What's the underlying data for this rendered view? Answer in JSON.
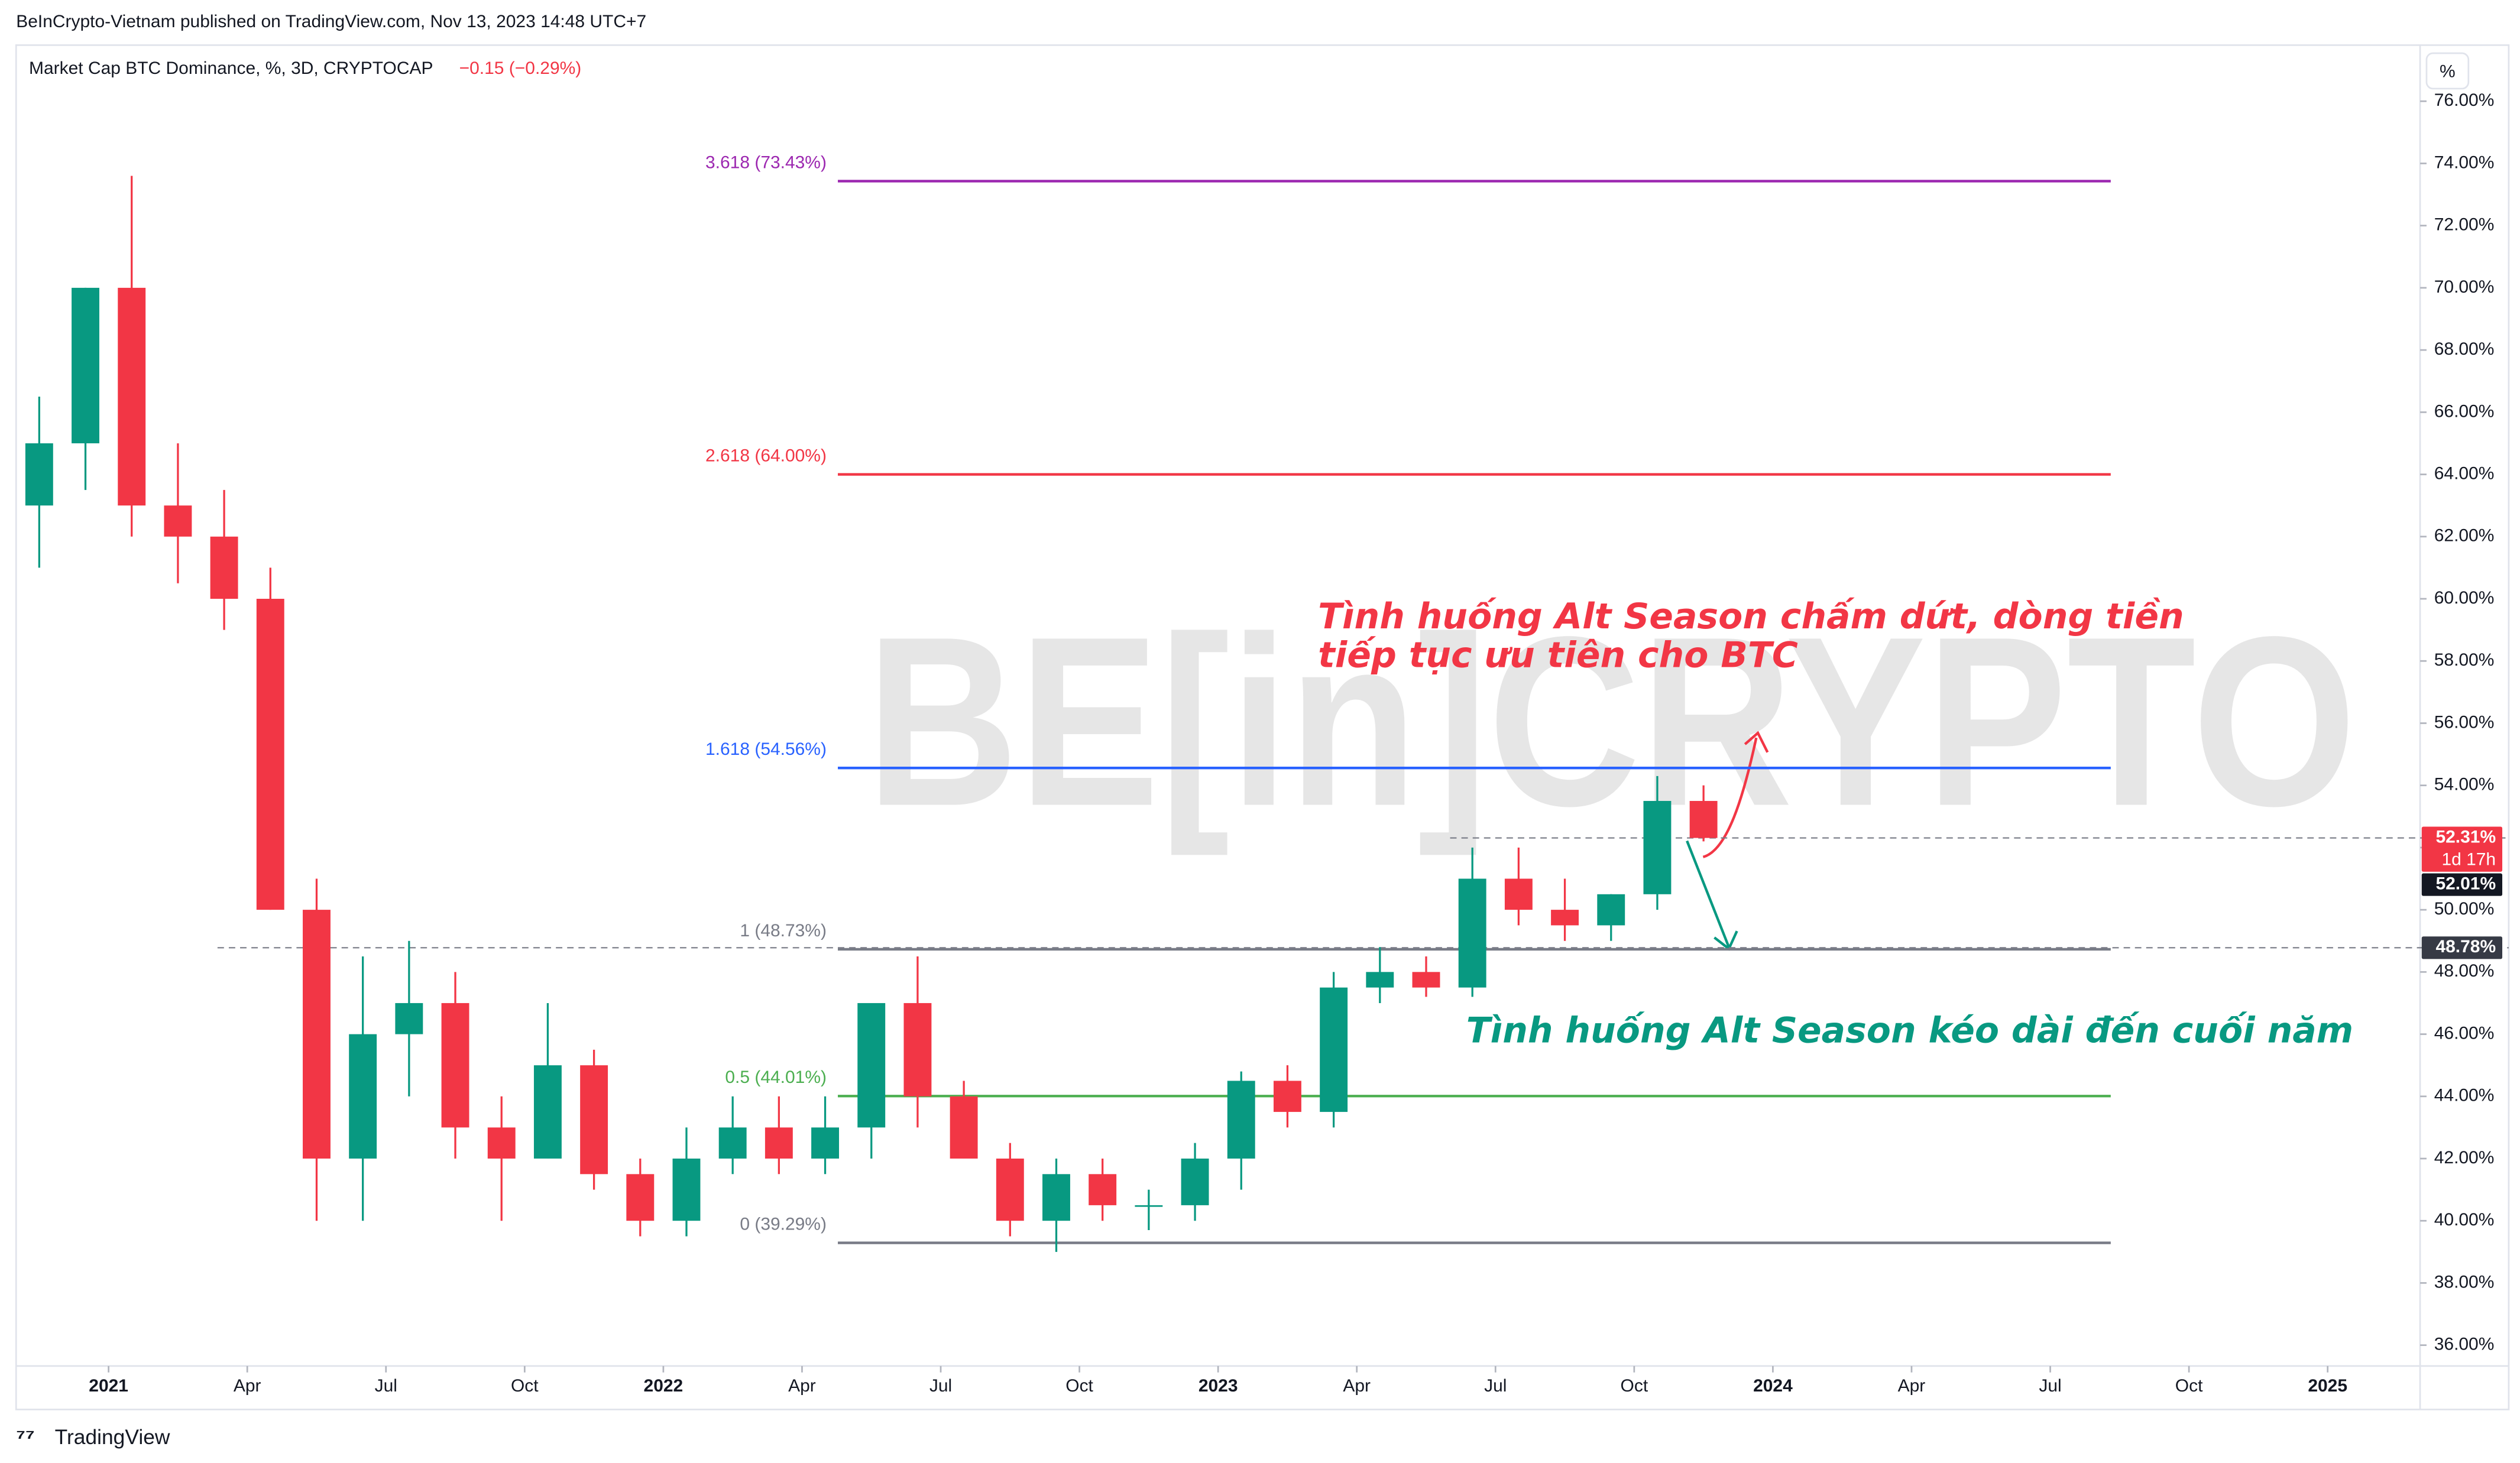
{
  "header": {
    "published": "BeInCrypto-Vietnam published on TradingView.com, Nov 13, 2023 14:48 UTC+7",
    "scale_button": "%"
  },
  "footer": {
    "brand": "TradingView"
  },
  "watermark": "BE[in]CRYPTO",
  "chart_data": {
    "type": "candlestick",
    "title": "Market Cap BTC Dominance, %, 3D, CRYPTOCAP",
    "change": "−0.15 (−0.29%)",
    "x": [
      "2020-11",
      "2020-12",
      "2021-01",
      "2021-02",
      "2021-03",
      "2021-04",
      "2021-05",
      "2021-06",
      "2021-07",
      "2021-08",
      "2021-09",
      "2021-10",
      "2021-11",
      "2021-12",
      "2022-01",
      "2022-02",
      "2022-03",
      "2022-04",
      "2022-05",
      "2022-06",
      "2022-07",
      "2022-08",
      "2022-09",
      "2022-10",
      "2022-11",
      "2022-12",
      "2023-01",
      "2023-02",
      "2023-03",
      "2023-04",
      "2023-05",
      "2023-06",
      "2023-07",
      "2023-08",
      "2023-09",
      "2023-10",
      "2023-11"
    ],
    "open": [
      63,
      65,
      70,
      63,
      62,
      60,
      50,
      42,
      46,
      47,
      43,
      42,
      45,
      41.5,
      40,
      42,
      43,
      42,
      43,
      47,
      44,
      42,
      40,
      41.5,
      40.5,
      40.5,
      42,
      44.5,
      43.5,
      47.5,
      48,
      47.5,
      51,
      50,
      49.5,
      50.5,
      53.5
    ],
    "high": [
      66.5,
      70,
      73.6,
      65,
      63.5,
      61,
      51,
      48.5,
      49,
      48,
      44,
      47,
      45.5,
      42,
      43,
      44,
      44,
      44,
      47,
      48.5,
      44.5,
      42.5,
      42,
      42,
      41,
      42.5,
      44.8,
      45,
      48,
      48.8,
      48.5,
      52,
      52,
      51,
      50.5,
      54.3,
      54
    ],
    "low": [
      61,
      63.5,
      62,
      60.5,
      59,
      50,
      40,
      40,
      44,
      42,
      40,
      42,
      41,
      39.5,
      39.5,
      41.5,
      41.5,
      41.5,
      42,
      43,
      42,
      39.5,
      39,
      40,
      39.7,
      40,
      41,
      43,
      43,
      47,
      47.2,
      47.2,
      49.5,
      49,
      49,
      50,
      52.2
    ],
    "close": [
      65,
      70,
      63,
      62,
      60,
      50,
      42,
      46,
      47,
      43,
      42,
      45,
      41.5,
      40,
      42,
      43,
      42,
      43,
      47,
      44,
      42,
      40,
      41.5,
      40.5,
      40.5,
      42,
      44.5,
      43.5,
      47.5,
      48,
      47.5,
      51,
      50,
      49.5,
      50.5,
      53.5,
      52.31
    ],
    "up_color": "#089981",
    "down_color": "#f23645",
    "xlim": [
      "2020-11",
      "2025-03"
    ],
    "xticks": [
      {
        "value": "2021-01",
        "label": "2021"
      },
      {
        "value": "2021-04",
        "label": "Apr"
      },
      {
        "value": "2021-07",
        "label": "Jul"
      },
      {
        "value": "2021-10",
        "label": "Oct"
      },
      {
        "value": "2022-01",
        "label": "2022"
      },
      {
        "value": "2022-04",
        "label": "Apr"
      },
      {
        "value": "2022-07",
        "label": "Jul"
      },
      {
        "value": "2022-10",
        "label": "Oct"
      },
      {
        "value": "2023-01",
        "label": "2023"
      },
      {
        "value": "2023-04",
        "label": "Apr"
      },
      {
        "value": "2023-07",
        "label": "Jul"
      },
      {
        "value": "2023-10",
        "label": "Oct"
      },
      {
        "value": "2024-01",
        "label": "2024"
      },
      {
        "value": "2024-04",
        "label": "Apr"
      },
      {
        "value": "2024-07",
        "label": "Jul"
      },
      {
        "value": "2024-10",
        "label": "Oct"
      },
      {
        "value": "2025-01",
        "label": "2025"
      }
    ],
    "ylim": [
      35.33,
      77.7
    ],
    "yticks": [
      {
        "value": 36,
        "label": "36.00%"
      },
      {
        "value": 38,
        "label": "38.00%"
      },
      {
        "value": 40,
        "label": "40.00%"
      },
      {
        "value": 42,
        "label": "42.00%"
      },
      {
        "value": 44,
        "label": "44.00%"
      },
      {
        "value": 46,
        "label": "46.00%"
      },
      {
        "value": 48,
        "label": "48.00%"
      },
      {
        "value": 50,
        "label": "50.00%"
      },
      {
        "value": 52,
        "label": "52.00%"
      },
      {
        "value": 54,
        "label": "54.00%"
      },
      {
        "value": 56,
        "label": "56.00%"
      },
      {
        "value": 58,
        "label": "58.00%"
      },
      {
        "value": 60,
        "label": "60.00%"
      },
      {
        "value": 62,
        "label": "62.00%"
      },
      {
        "value": 64,
        "label": "64.00%"
      },
      {
        "value": 66,
        "label": "66.00%"
      },
      {
        "value": 68,
        "label": "68.00%"
      },
      {
        "value": 70,
        "label": "70.00%"
      },
      {
        "value": 72,
        "label": "72.00%"
      },
      {
        "value": 74,
        "label": "74.00%"
      },
      {
        "value": 76,
        "label": "76.00%"
      }
    ],
    "fib_levels": [
      {
        "label": "3.618 (73.43%)",
        "value": 73.43,
        "color": "#9c27b0"
      },
      {
        "label": "2.618 (64.00%)",
        "value": 64.0,
        "color": "#f23645"
      },
      {
        "label": "1.618 (54.56%)",
        "value": 54.56,
        "color": "#2962ff"
      },
      {
        "label": "1 (48.73%)",
        "value": 48.73,
        "color": "#787b86"
      },
      {
        "label": "0.5 (44.01%)",
        "value": 44.01,
        "color": "#4caf50"
      },
      {
        "label": "0 (39.29%)",
        "value": 39.29,
        "color": "#787b86"
      }
    ],
    "price_badges": [
      {
        "label": "52.31%",
        "value": 52.31,
        "sub": "1d 17h",
        "color": "#f23645"
      },
      {
        "label": "52.01%",
        "value": 52.01,
        "color": "#131722"
      },
      {
        "label": "48.78%",
        "value": 48.78,
        "color": "#363a45"
      }
    ],
    "annotations": [
      {
        "lines": [
          "Tình huống Alt Season chấm dứt, dòng tiền",
          "tiếp tục ưu tiên cho BTC"
        ],
        "color": "#f23645"
      },
      {
        "lines": [
          "Tình huống Alt Season kéo dài đến cuối năm"
        ],
        "color": "#089981"
      }
    ]
  }
}
